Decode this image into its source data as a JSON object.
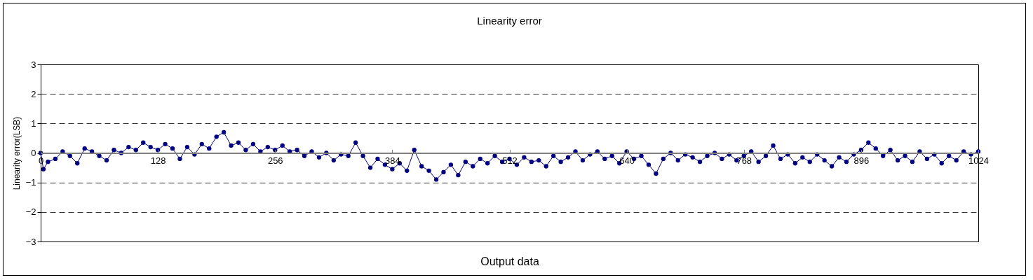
{
  "chart_data": {
    "type": "line",
    "title": "Linearity error",
    "xlabel": "Output data",
    "ylabel": "Linearity error(LSB)",
    "xlim": [
      0,
      1024
    ],
    "xticks": [
      0,
      128,
      256,
      384,
      512,
      640,
      768,
      896,
      1024
    ],
    "ylim": [
      -3,
      3
    ],
    "yticks": [
      -3,
      -2,
      -1,
      0,
      1,
      2,
      3
    ],
    "grid": "y",
    "marker": "circle",
    "line_style": "solid",
    "legend": false,
    "series": [
      {
        "color": "#000080",
        "x": [
          0,
          3,
          8,
          16,
          24,
          32,
          40,
          48,
          56,
          64,
          72,
          80,
          88,
          96,
          104,
          112,
          120,
          128,
          136,
          144,
          152,
          160,
          168,
          176,
          184,
          192,
          200,
          208,
          216,
          224,
          232,
          240,
          248,
          256,
          264,
          272,
          280,
          288,
          296,
          304,
          312,
          320,
          328,
          336,
          344,
          352,
          360,
          368,
          376,
          384,
          392,
          400,
          408,
          416,
          424,
          432,
          440,
          448,
          456,
          464,
          472,
          480,
          488,
          496,
          504,
          512,
          520,
          528,
          536,
          544,
          552,
          560,
          568,
          576,
          584,
          592,
          600,
          608,
          616,
          624,
          632,
          640,
          648,
          656,
          664,
          672,
          680,
          688,
          696,
          704,
          712,
          720,
          728,
          736,
          744,
          752,
          760,
          768,
          776,
          784,
          792,
          800,
          808,
          816,
          824,
          832,
          840,
          848,
          856,
          864,
          872,
          880,
          888,
          896,
          904,
          912,
          920,
          928,
          936,
          944,
          952,
          960,
          968,
          976,
          984,
          992,
          1000,
          1008,
          1016,
          1024
        ],
        "values": [
          0.0,
          -0.55,
          -0.3,
          -0.2,
          0.05,
          -0.1,
          -0.35,
          0.15,
          0.05,
          -0.1,
          -0.25,
          0.1,
          0.0,
          0.2,
          0.1,
          0.35,
          0.2,
          0.1,
          0.3,
          0.15,
          -0.2,
          0.2,
          -0.05,
          0.3,
          0.15,
          0.55,
          0.7,
          0.25,
          0.35,
          0.1,
          0.3,
          0.05,
          0.2,
          0.1,
          0.25,
          0.05,
          0.1,
          -0.1,
          0.05,
          -0.15,
          0.0,
          -0.25,
          -0.05,
          -0.1,
          0.35,
          -0.1,
          -0.5,
          -0.2,
          -0.4,
          -0.55,
          -0.35,
          -0.6,
          0.1,
          -0.45,
          -0.6,
          -0.9,
          -0.65,
          -0.4,
          -0.75,
          -0.3,
          -0.45,
          -0.2,
          -0.35,
          -0.1,
          -0.3,
          -0.2,
          -0.4,
          -0.15,
          -0.3,
          -0.25,
          -0.45,
          -0.1,
          -0.3,
          -0.15,
          0.05,
          -0.25,
          -0.05,
          0.05,
          -0.2,
          -0.1,
          -0.35,
          0.05,
          -0.2,
          -0.1,
          -0.4,
          -0.7,
          -0.2,
          0.0,
          -0.25,
          -0.05,
          -0.15,
          -0.3,
          -0.1,
          0.0,
          -0.2,
          -0.05,
          -0.25,
          -0.1,
          0.05,
          -0.3,
          -0.1,
          0.25,
          -0.2,
          -0.05,
          -0.35,
          -0.15,
          -0.3,
          -0.05,
          -0.25,
          -0.45,
          -0.15,
          -0.3,
          -0.05,
          0.1,
          0.35,
          0.15,
          -0.1,
          0.1,
          -0.25,
          -0.1,
          -0.3,
          0.05,
          -0.2,
          -0.05,
          -0.35,
          -0.1,
          -0.25,
          0.05,
          -0.05,
          0.05
        ]
      }
    ]
  }
}
